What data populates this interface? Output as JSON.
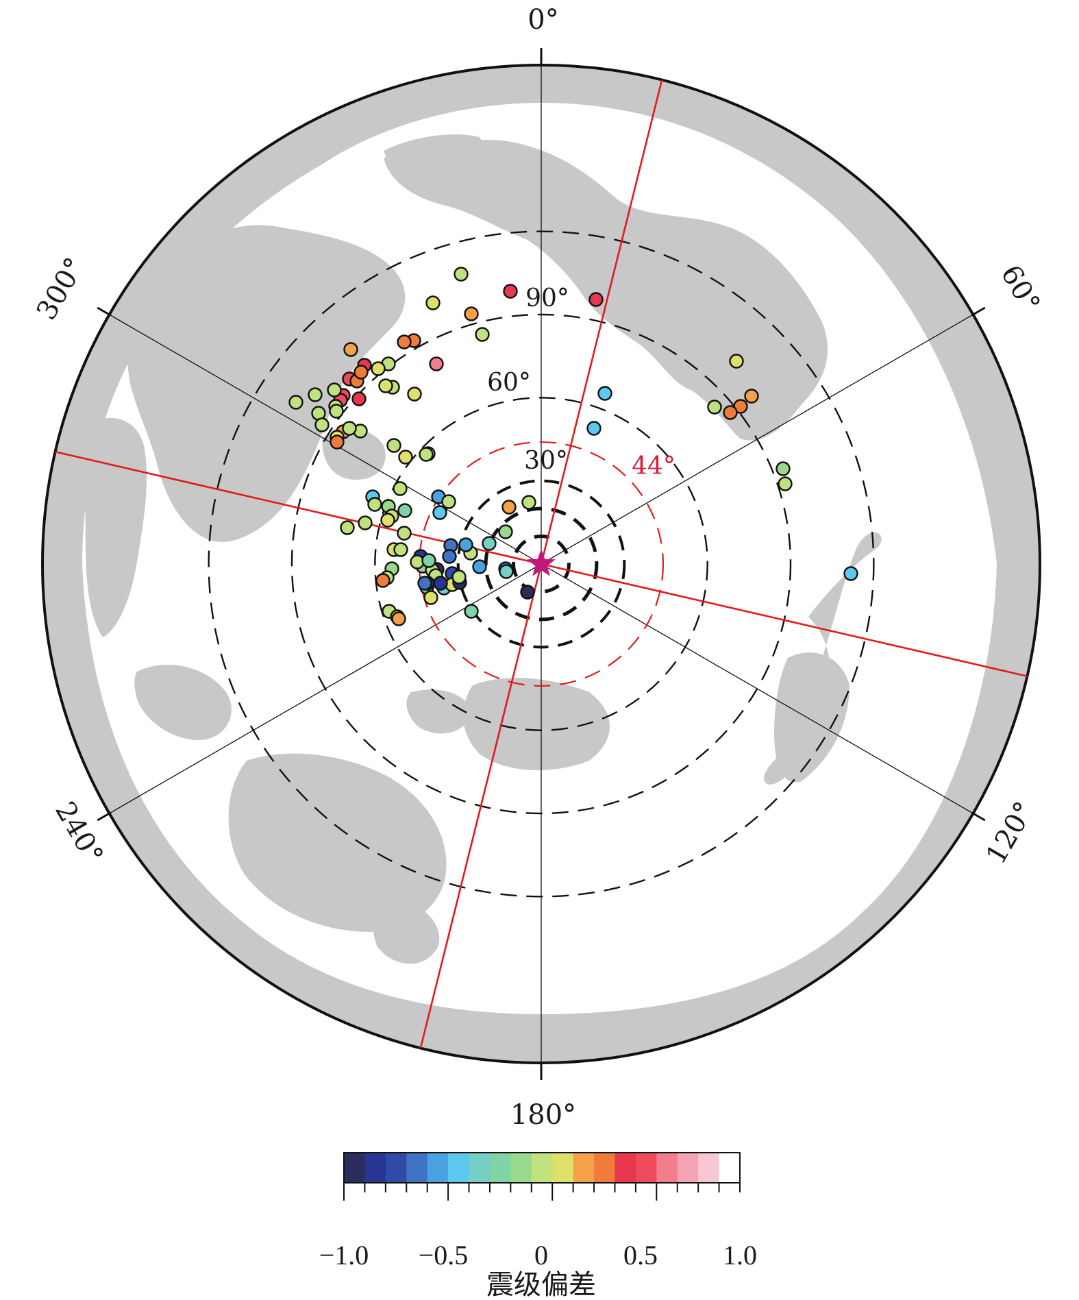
{
  "azimuth_labels": {
    "az0": "0°",
    "az60": "60°",
    "az120": "120°",
    "az180": "180°",
    "az240": "240°",
    "az300": "300°"
  },
  "distance_ring_labels": {
    "d30": "30°",
    "d44": "44°",
    "d60": "60°",
    "d90": "90°"
  },
  "colorbar": {
    "title": "震级偏差",
    "tick_labels": [
      "−1.0",
      "−0.5",
      "0",
      "0.5",
      "1.0"
    ],
    "range": [
      -1.0,
      1.0
    ],
    "colors": [
      "#2b2d5c",
      "#283593",
      "#2f4aa8",
      "#3f73c4",
      "#4aa3e0",
      "#5cc8ee",
      "#74d0c6",
      "#7fd3a6",
      "#99d98c",
      "#bfe27e",
      "#dde16a",
      "#f3a24a",
      "#f07c3c",
      "#e8384e",
      "#ee4a5c",
      "#f27d8c",
      "#f4a3b3",
      "#f8c8d2",
      "#ffffff"
    ]
  },
  "colors": {
    "land": "#c8c8c8",
    "ocean": "#ffffff",
    "red_line": "#e31a1c",
    "ring_44": "#e31a1c",
    "epicenter_star": "#c2187a",
    "frame": "#111111"
  },
  "stations": {
    "description_legend": "circles colored by magnitude deviation",
    "values": [
      0.5,
      0.1,
      0.5,
      0.2,
      0.3,
      0.7,
      0.4,
      0.1,
      0.3,
      0.4,
      0.6,
      0.1,
      0.0,
      0.2,
      0.5,
      0.2,
      0.4,
      0.6,
      0.6,
      0.5,
      0.1,
      0.1,
      0.4,
      0.0,
      0.1,
      0.0,
      0.1,
      0.3,
      0.0,
      0.1,
      0.2,
      0.0,
      0.4,
      0.2,
      -0.4,
      -0.5,
      0.1,
      0.0,
      0.2,
      0.0,
      -0.1,
      0.0,
      0.1,
      0.0,
      -0.1,
      0.1,
      0.0,
      -0.6,
      -0.3,
      0.1,
      -0.2,
      0.0,
      0.2,
      0.1,
      0.2,
      0.1,
      0.1,
      0.0,
      0.2,
      -0.9,
      -0.8,
      -0.1,
      -0.6,
      0.0,
      0.1,
      0.4,
      -0.5,
      -0.7,
      -0.2,
      -0.3,
      0.0,
      0.2,
      0.3,
      0.3,
      -0.4,
      0.1,
      -0.2,
      -0.9,
      -0.6,
      -0.5,
      -0.1,
      0.2,
      -0.9,
      -0.8,
      -0.8,
      -0.6,
      -0.2,
      0.0,
      -0.3,
      0.4,
      0.3,
      0.4,
      0.1,
      -0.1,
      0.0,
      0.2,
      -0.4,
      -0.4,
      -0.4
    ]
  }
}
